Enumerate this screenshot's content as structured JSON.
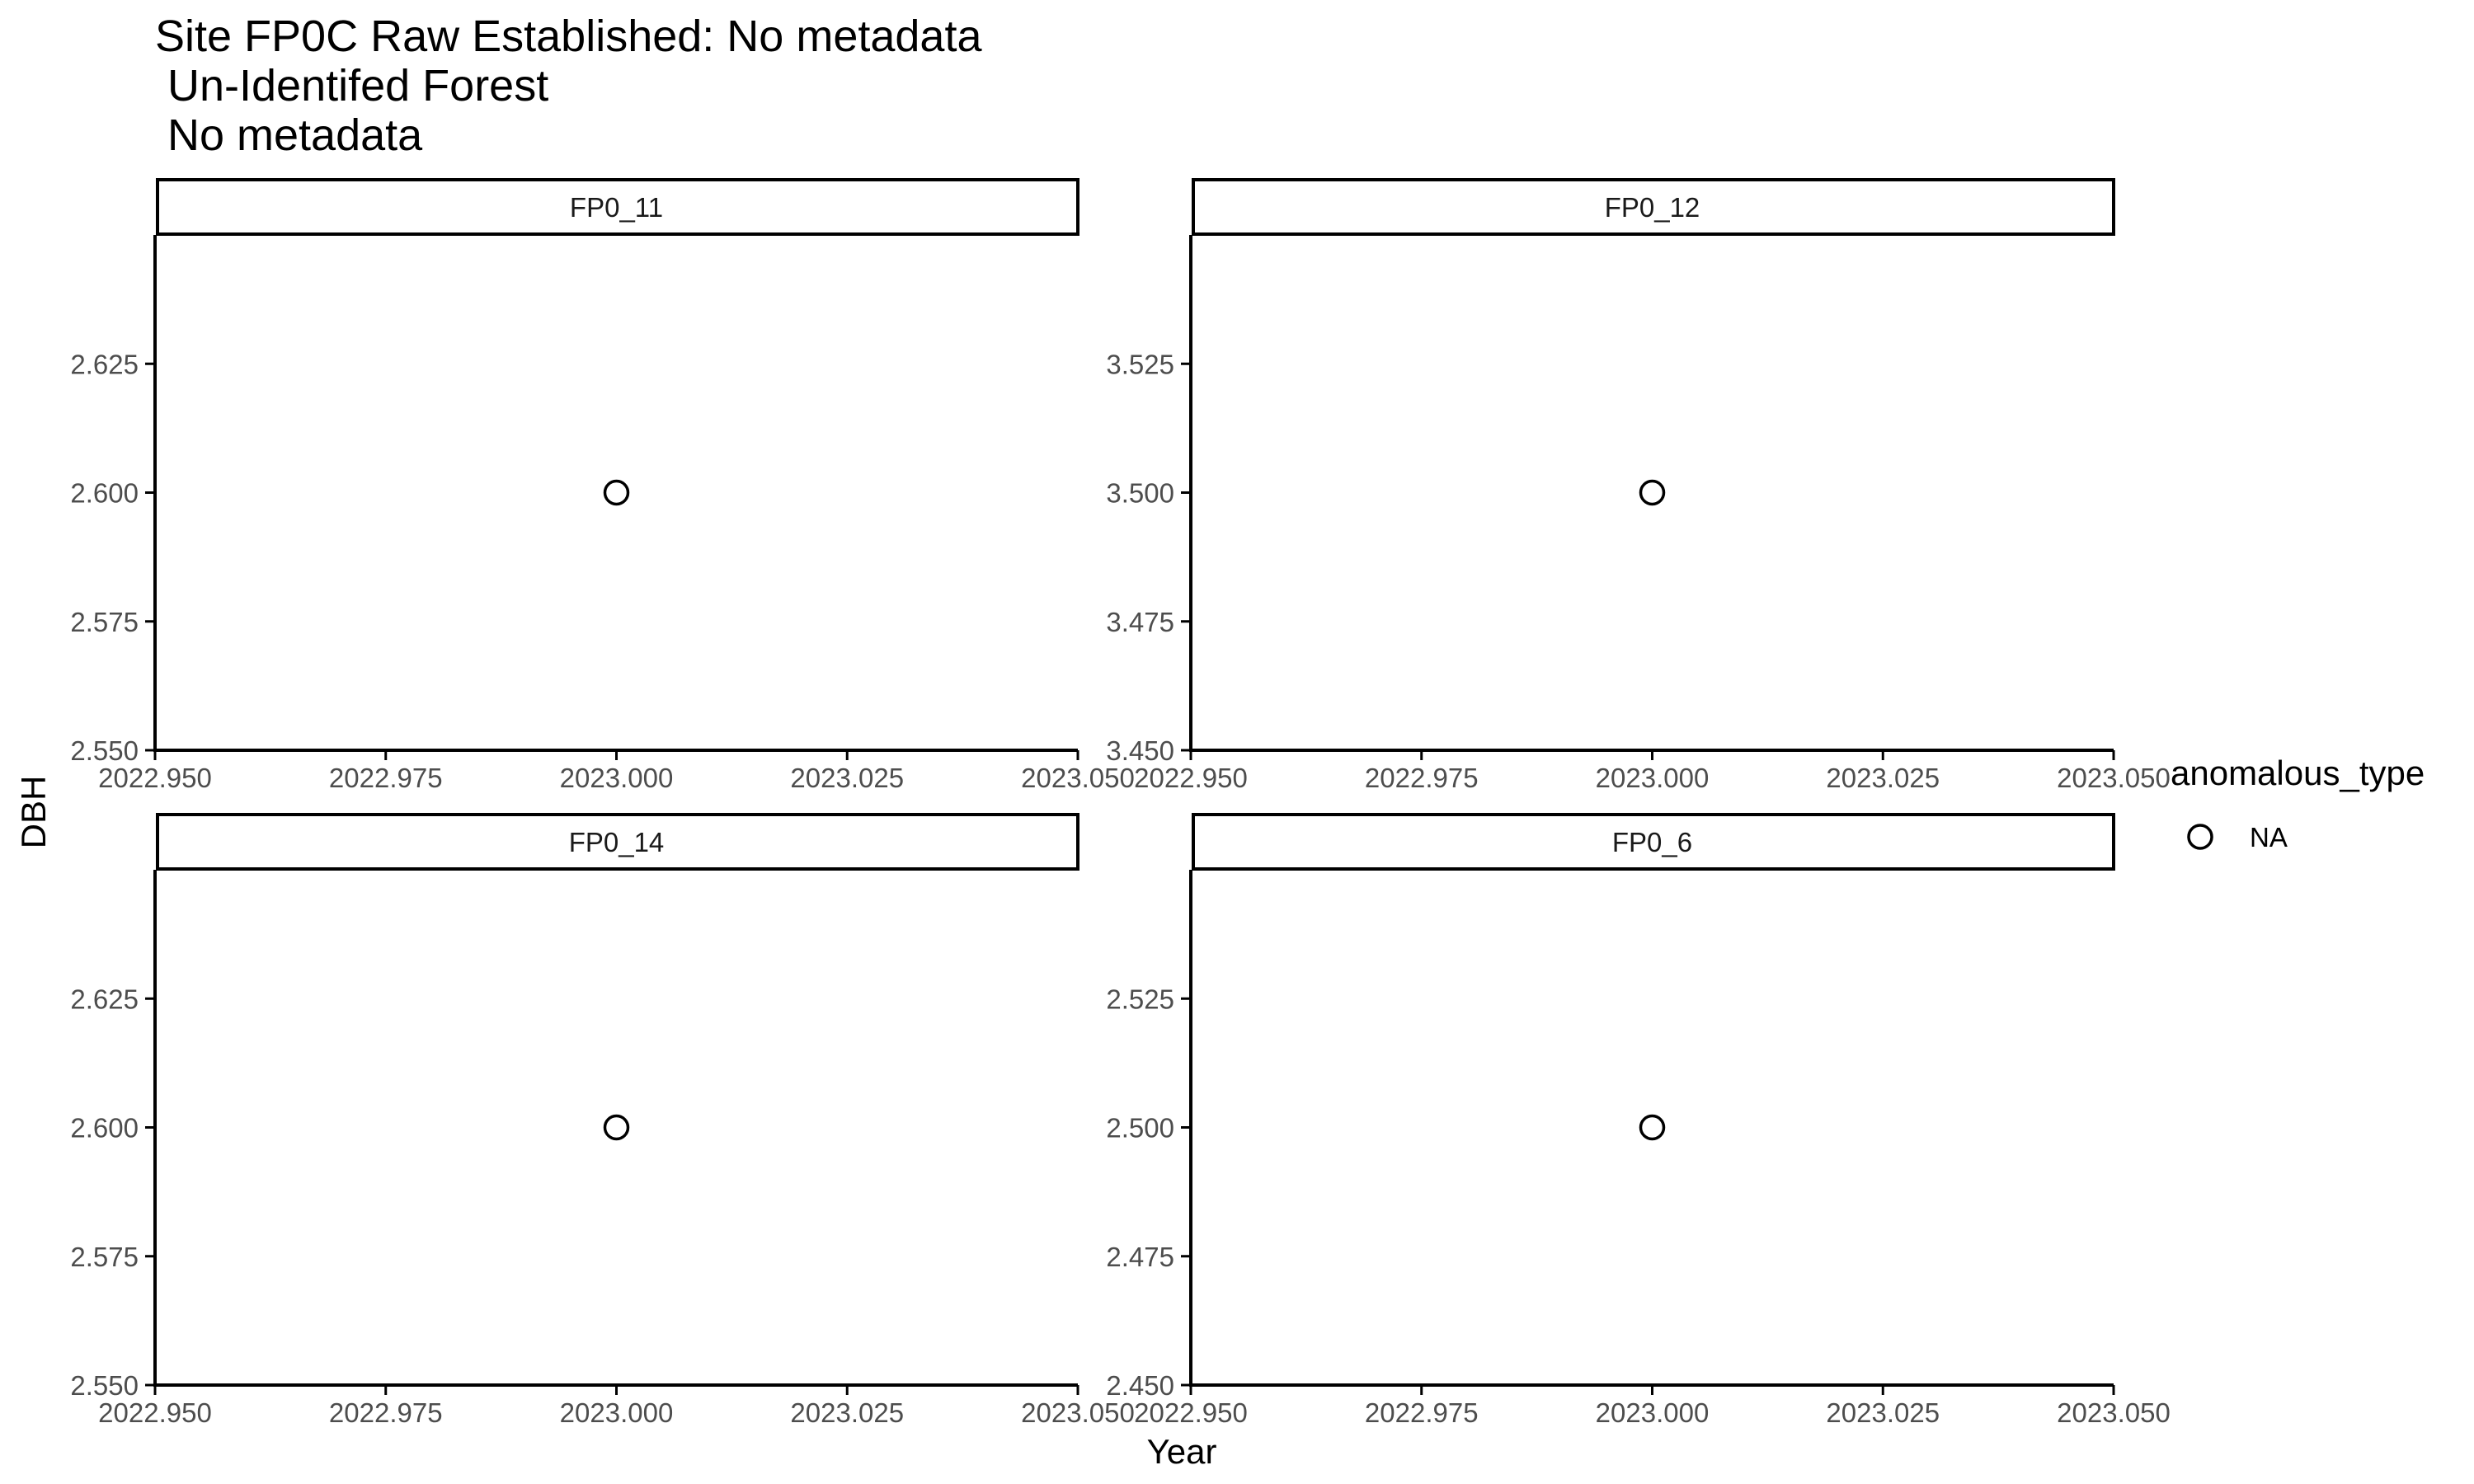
{
  "chart_data": {
    "type": "scatter",
    "title": "Site FP0C  Raw Established: No metadata\n Un-Identifed Forest\n No metadata",
    "xlabel": "Year",
    "ylabel": "DBH",
    "grid": false,
    "legend": {
      "title": "anomalous_type",
      "placement": "right",
      "entries": [
        {
          "label": "NA",
          "marker": "open-circle"
        }
      ]
    },
    "panels": [
      {
        "strip": "FP0_11",
        "xlim": [
          2022.95,
          2023.05
        ],
        "ylim": [
          2.55,
          2.65
        ],
        "xticks": [
          "2022.950",
          "2022.975",
          "2023.000",
          "2023.025",
          "2023.050"
        ],
        "yticks": [
          "2.550",
          "2.575",
          "2.600",
          "2.625"
        ],
        "points": [
          {
            "x": 2023.0,
            "y": 2.6,
            "anomalous_type": "NA"
          }
        ]
      },
      {
        "strip": "FP0_12",
        "xlim": [
          2022.95,
          2023.05
        ],
        "ylim": [
          3.45,
          3.55
        ],
        "xticks": [
          "2022.950",
          "2022.975",
          "2023.000",
          "2023.025",
          "2023.050"
        ],
        "yticks": [
          "3.450",
          "3.475",
          "3.500",
          "3.525"
        ],
        "points": [
          {
            "x": 2023.0,
            "y": 3.5,
            "anomalous_type": "NA"
          }
        ]
      },
      {
        "strip": "FP0_14",
        "xlim": [
          2022.95,
          2023.05
        ],
        "ylim": [
          2.55,
          2.65
        ],
        "xticks": [
          "2022.950",
          "2022.975",
          "2023.000",
          "2023.025",
          "2023.050"
        ],
        "yticks": [
          "2.550",
          "2.575",
          "2.600",
          "2.625"
        ],
        "points": [
          {
            "x": 2023.0,
            "y": 2.6,
            "anomalous_type": "NA"
          }
        ]
      },
      {
        "strip": "FP0_6",
        "xlim": [
          2022.95,
          2023.05
        ],
        "ylim": [
          2.45,
          2.55
        ],
        "xticks": [
          "2022.950",
          "2022.975",
          "2023.000",
          "2023.025",
          "2023.050"
        ],
        "yticks": [
          "2.450",
          "2.475",
          "2.500",
          "2.525"
        ],
        "points": [
          {
            "x": 2023.0,
            "y": 2.5,
            "anomalous_type": "NA"
          }
        ]
      }
    ]
  },
  "colors": {
    "axis": "#000000",
    "tick_text": "#4d4d4d",
    "point_stroke": "#000000",
    "background": "#ffffff"
  }
}
